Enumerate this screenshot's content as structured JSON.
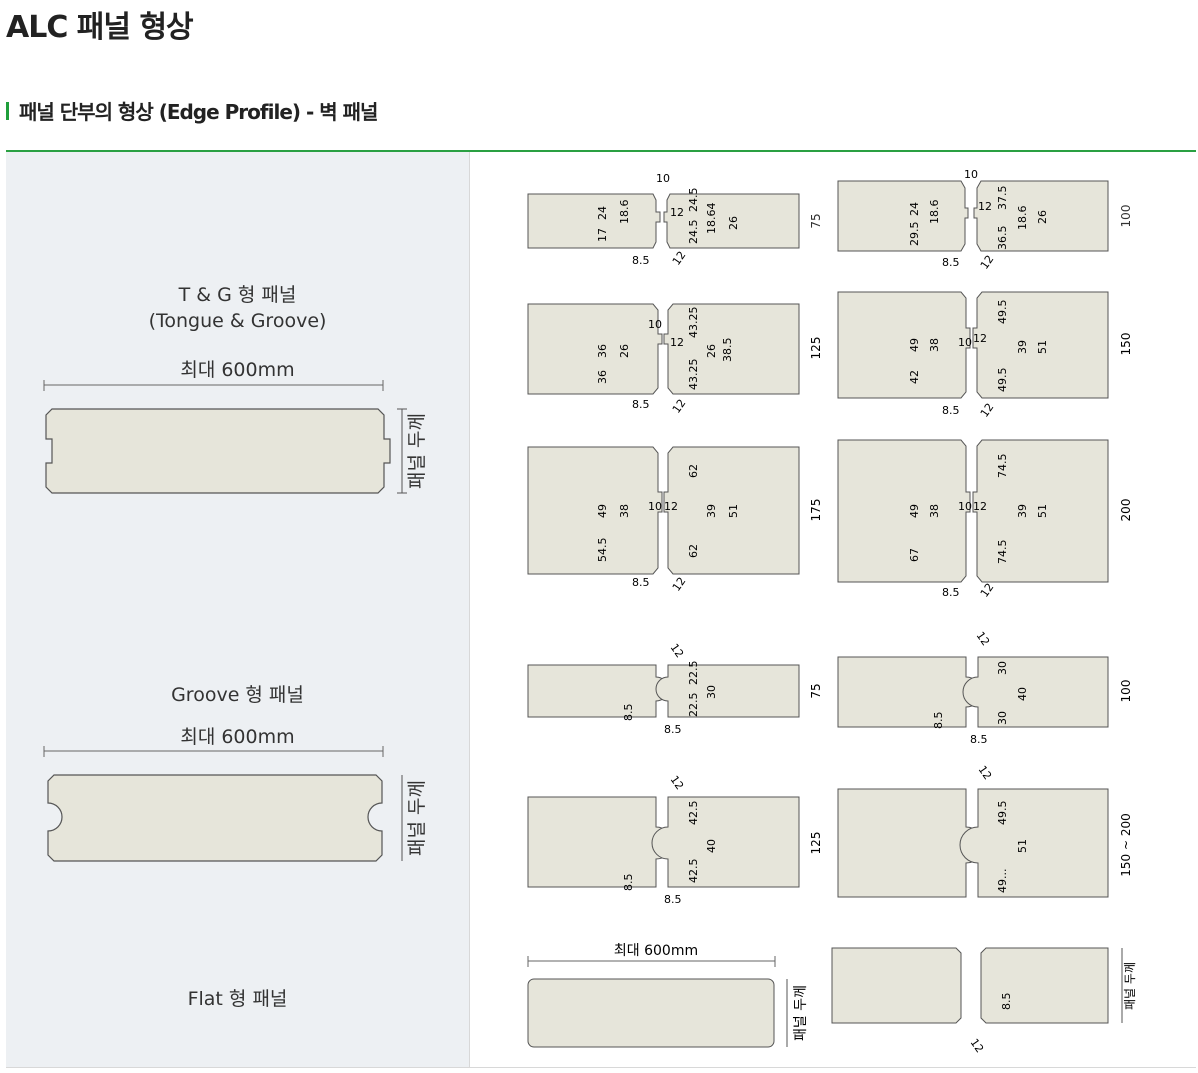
{
  "page": {
    "title": "ALC 패널 형상",
    "section_title": "패널 단부의 형상 (Edge Profile) - 벽 패널"
  },
  "colors": {
    "accent": "#1f9e3b",
    "panel_fill": "#e6e5da",
    "left_bg": "#edf0f3"
  },
  "rows": [
    {
      "name": "T & G 형 패널",
      "subname": "(Tongue & Groove)",
      "max_length": "최대   600mm",
      "thickness_label": "패널 두께",
      "details": [
        {
          "thickness": "75",
          "labels": [
            "10",
            "17",
            "24",
            "18.6",
            "8.5",
            "12",
            "24.5",
            "18.64",
            "26",
            "24.5",
            "8.5",
            "12"
          ]
        },
        {
          "thickness": "100",
          "labels": [
            "10",
            "29.5",
            "24",
            "18.6",
            "8.5",
            "12",
            "37.5",
            "18.6",
            "26",
            "36.5",
            "8.5",
            "12"
          ]
        },
        {
          "thickness": "125",
          "labels": [
            "10",
            "36",
            "36",
            "26",
            "8.5",
            "12",
            "43.25",
            "26",
            "38.5",
            "43.25",
            "8.5",
            "12"
          ]
        },
        {
          "thickness": "150",
          "labels": [
            "42",
            "49",
            "38",
            "8.5",
            "10",
            "12",
            "49.5",
            "39",
            "51",
            "49.5",
            "8.5",
            "12"
          ]
        },
        {
          "thickness": "175",
          "labels": [
            "54.5",
            "49",
            "38",
            "8.5",
            "10",
            "12",
            "62",
            "39",
            "51",
            "62",
            "8.5",
            "12"
          ]
        },
        {
          "thickness": "200",
          "labels": [
            "67",
            "49",
            "38",
            "8.5",
            "10",
            "12",
            "74.5",
            "39",
            "51",
            "74.5",
            "8.5",
            "12"
          ]
        }
      ]
    },
    {
      "name": "Groove 형 패널",
      "max_length": "최대   600mm",
      "thickness_label": "패널 두께",
      "details": [
        {
          "thickness": "75",
          "labels": [
            "12",
            "22.5",
            "30",
            "22.5",
            "8.5",
            "8.5"
          ]
        },
        {
          "thickness": "100",
          "labels": [
            "12",
            "30",
            "40",
            "30",
            "8.5",
            "8.5"
          ]
        },
        {
          "thickness": "125",
          "labels": [
            "12",
            "42.5",
            "40",
            "42.5",
            "8.5",
            "8.5"
          ]
        },
        {
          "thickness": "150 ~ 200",
          "labels": [
            "12",
            "49.5",
            "51",
            "49..."
          ]
        }
      ]
    },
    {
      "name": "Flat 형 패널",
      "max_length": "최대   600mm",
      "thickness_label": "패널 두께",
      "details": [
        {
          "labels": [
            "8.5",
            "12"
          ]
        }
      ]
    }
  ]
}
